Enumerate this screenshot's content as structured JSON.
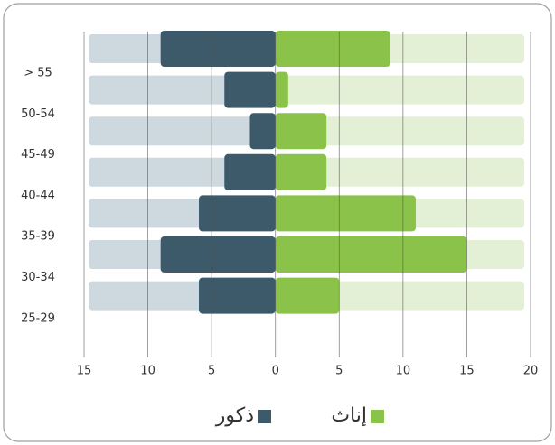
{
  "chart_data": {
    "type": "pyramid",
    "categories": [
      "> 55",
      "50-54",
      "45-49",
      "40-44",
      "35-39",
      "30-34",
      "25-29"
    ],
    "series": [
      {
        "name": "ذكور",
        "color": "#3d5a6b",
        "background": "#cdd8df",
        "side": "left",
        "values": [
          9,
          4,
          2,
          4,
          6,
          9,
          6
        ]
      },
      {
        "name": "إناث",
        "color": "#8bc34a",
        "background": "#e3f0d6",
        "side": "right",
        "values": [
          9,
          1,
          4,
          4,
          11,
          15,
          5
        ]
      }
    ],
    "xlim": [
      -15,
      20
    ],
    "xticks": [
      {
        "value": -15,
        "label": "15"
      },
      {
        "value": -10,
        "label": "10"
      },
      {
        "value": -5,
        "label": "5"
      },
      0,
      5,
      10,
      15,
      20
    ],
    "grid": true
  }
}
